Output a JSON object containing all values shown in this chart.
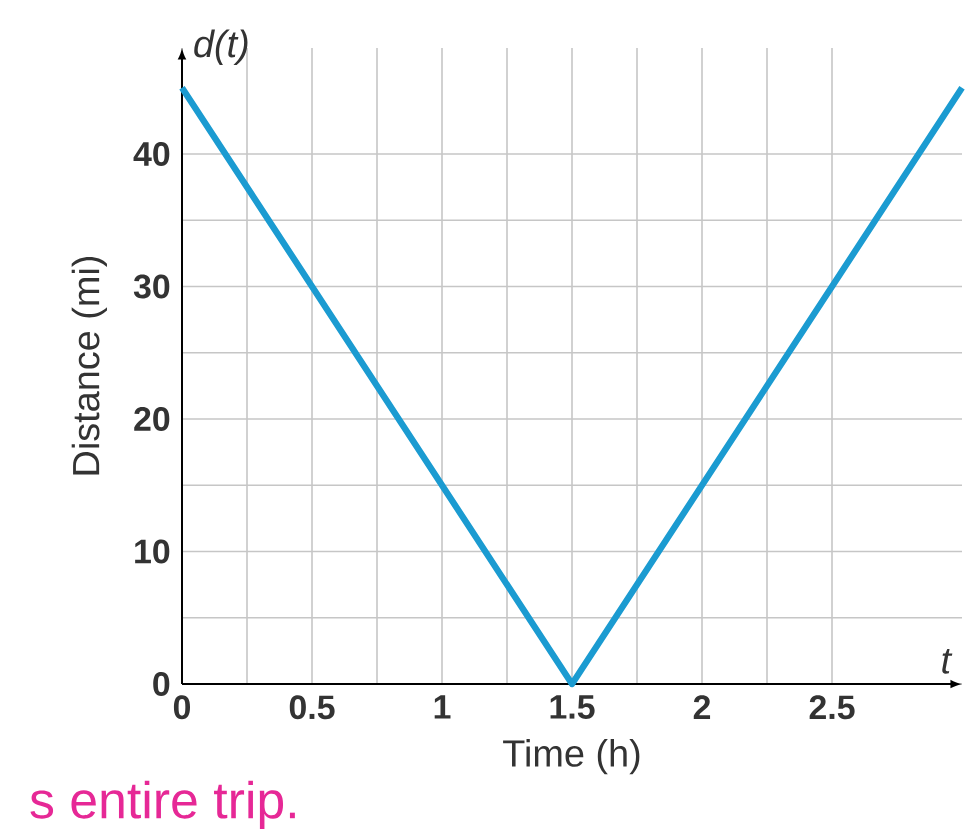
{
  "chart_data": {
    "type": "line",
    "xlabel": "Time (h)",
    "ylabel": "Distance (mi)",
    "x": [
      0,
      1.5,
      3
    ],
    "series": [
      {
        "color": "#1b9bd1",
        "values": [
          45,
          0,
          45
        ]
      }
    ],
    "xlim": [
      0,
      3
    ],
    "ylim": [
      0,
      48
    ],
    "xticks": [
      0,
      0.5,
      1,
      1.5,
      2,
      2.5
    ],
    "yticks": [
      0,
      10,
      20,
      30,
      40
    ],
    "grid": true,
    "marker": "none",
    "line_style": "solid",
    "annotations": [
      "d(t)",
      "t",
      "s entire trip."
    ]
  }
}
